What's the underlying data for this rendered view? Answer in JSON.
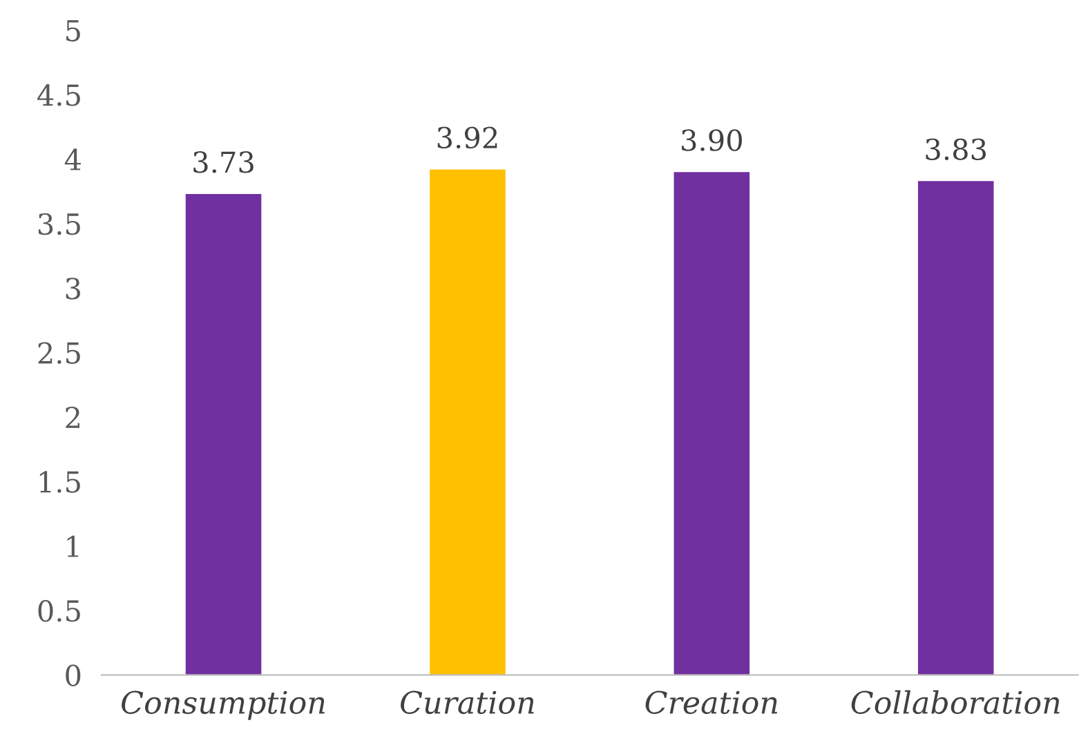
{
  "chart_data": {
    "type": "bar",
    "categories": [
      "Consumption",
      "Curation",
      "Creation",
      "Collaboration"
    ],
    "values": [
      3.73,
      3.92,
      3.9,
      3.83
    ],
    "value_labels": [
      "3.73",
      "3.92",
      "3.90",
      "3.83"
    ],
    "colors": [
      "#7030a0",
      "#ffc000",
      "#7030a0",
      "#7030a0"
    ],
    "ylim": [
      0,
      5
    ],
    "yticks": [
      0,
      0.5,
      1,
      1.5,
      2,
      2.5,
      3,
      3.5,
      4,
      4.5,
      5
    ],
    "grid": false,
    "legend": false
  }
}
